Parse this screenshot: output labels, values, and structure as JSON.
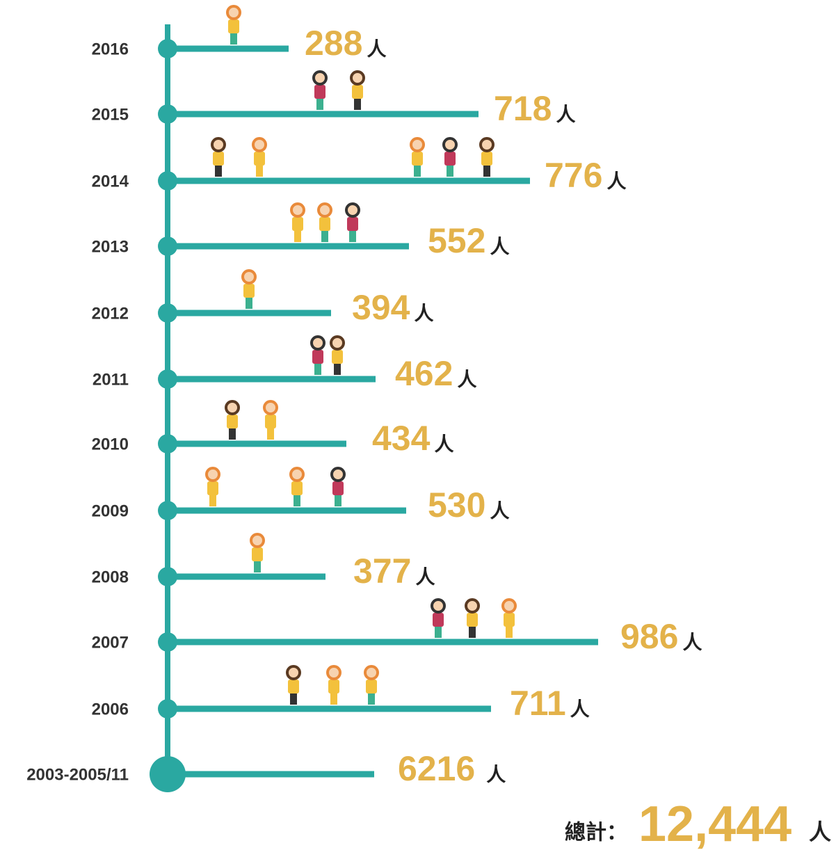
{
  "rows": [
    {
      "label": "2016",
      "count": 288
    },
    {
      "label": "2015",
      "count": 718
    },
    {
      "label": "2014",
      "count": 776
    },
    {
      "label": "2013",
      "count": 552
    },
    {
      "label": "2012",
      "count": 394
    },
    {
      "label": "2011",
      "count": 462
    },
    {
      "label": "2010",
      "count": 434
    },
    {
      "label": "2009",
      "count": 530
    },
    {
      "label": "2008",
      "count": 377
    },
    {
      "label": "2007",
      "count": 986
    },
    {
      "label": "2006",
      "count": 711
    },
    {
      "label": "2003-2005/11",
      "count": 6216
    }
  ],
  "unit": "人",
  "total": {
    "label": "總計：",
    "value": "12,444",
    "unit": "人"
  }
}
